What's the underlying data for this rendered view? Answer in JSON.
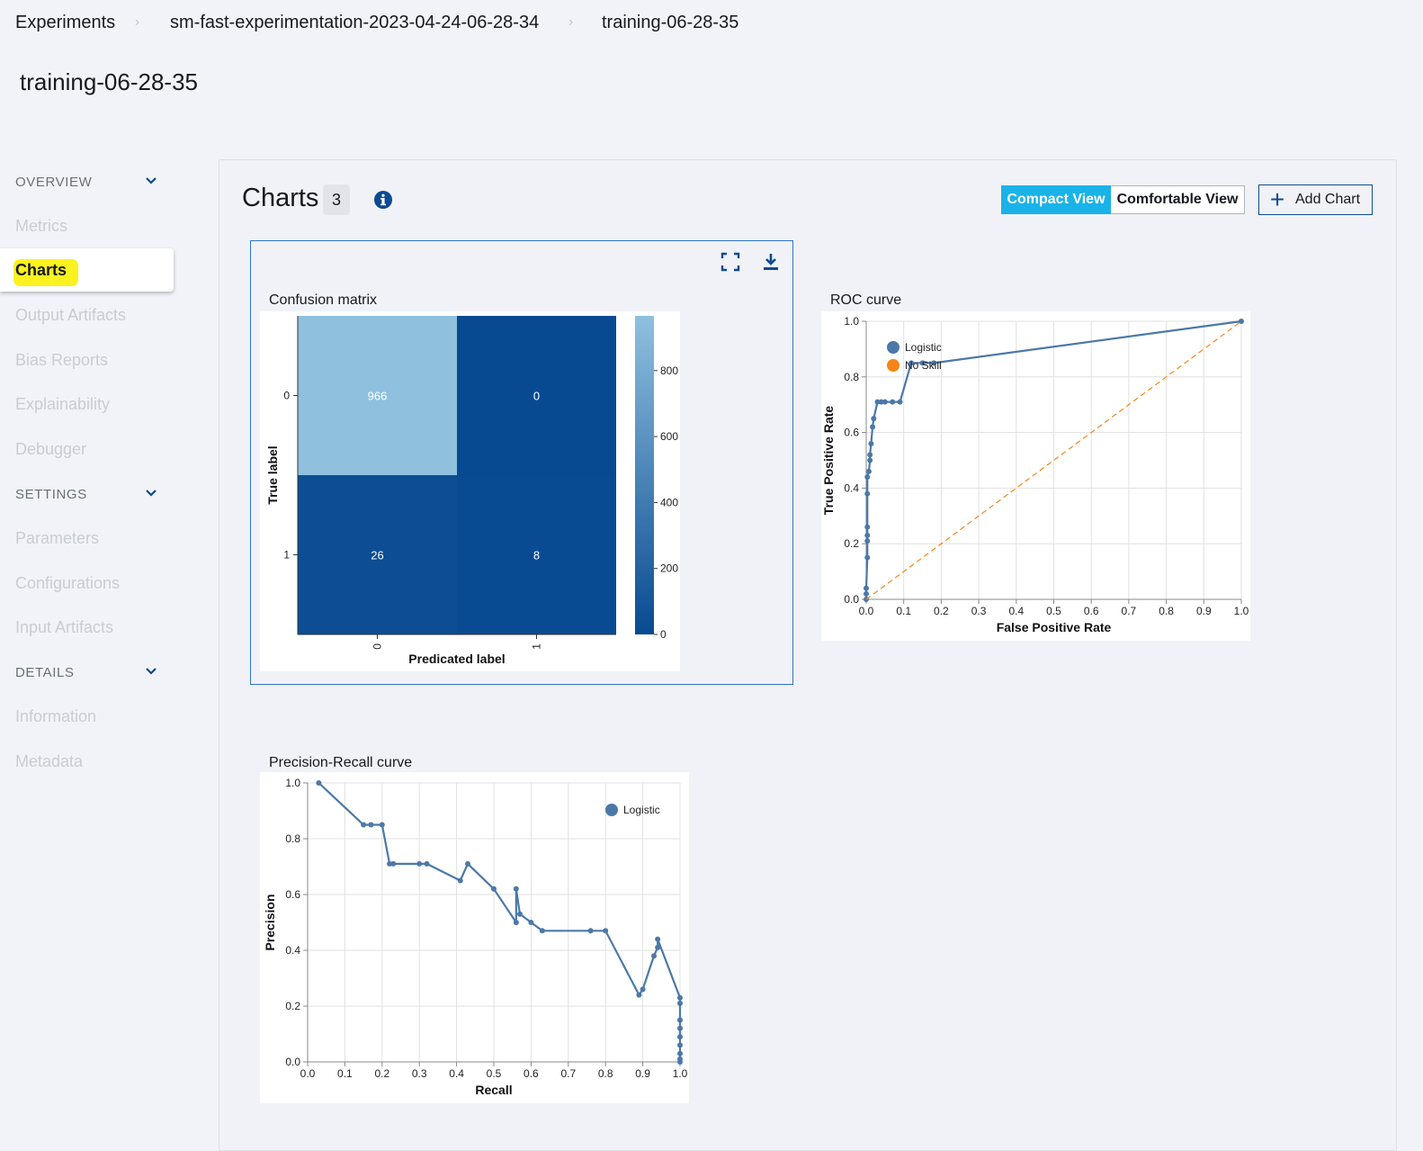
{
  "breadcrumb": [
    "Experiments",
    "sm-fast-experimentation-2023-04-24-06-28-34",
    "training-06-28-35"
  ],
  "page_title": "training-06-28-35",
  "sidebar": {
    "sections": [
      {
        "label": "OVERVIEW",
        "items": [
          "Metrics",
          "Charts",
          "Output Artifacts",
          "Bias Reports",
          "Explainability",
          "Debugger"
        ]
      },
      {
        "label": "SETTINGS",
        "items": [
          "Parameters",
          "Configurations",
          "Input Artifacts"
        ]
      },
      {
        "label": "DETAILS",
        "items": [
          "Information",
          "Metadata"
        ]
      }
    ],
    "active_item": "Charts"
  },
  "charts_header": {
    "title": "Charts",
    "count": "3",
    "view_compact": "Compact View",
    "view_comfortable": "Comfortable View",
    "selected_view": "Compact View",
    "add_chart": "Add Chart"
  },
  "colors": {
    "accent": "#19b3e8",
    "series_blue": "#4c78a8",
    "no_skill_orange": "#f58518",
    "highlight": "#fbf21f"
  },
  "icons": [
    "chevron-down-icon",
    "info-icon",
    "fullscreen-icon",
    "download-icon",
    "plus-icon"
  ],
  "chart_data": [
    {
      "type": "heatmap",
      "title": "Confusion matrix",
      "xlabel": "Predicated label",
      "ylabel": "True label",
      "x_categories": [
        "0",
        "1"
      ],
      "y_categories": [
        "0",
        "1"
      ],
      "values": [
        [
          966,
          0
        ],
        [
          26,
          8
        ]
      ],
      "colorbar_ticks": [
        0,
        200,
        400,
        600,
        800
      ],
      "colorbar_range": [
        0,
        966
      ]
    },
    {
      "type": "line",
      "title": "ROC curve",
      "xlabel": "False Positive Rate",
      "ylabel": "True Positive Rate",
      "xlim": [
        0,
        1
      ],
      "ylim": [
        0,
        1
      ],
      "x_ticks": [
        "0.0",
        "0.1",
        "0.2",
        "0.3",
        "0.4",
        "0.5",
        "0.6",
        "0.7",
        "0.8",
        "0.9",
        "1.0"
      ],
      "y_ticks": [
        "0.0",
        "0.2",
        "0.4",
        "0.6",
        "0.8",
        "1.0"
      ],
      "grid": true,
      "legend_position": "top-left",
      "series": [
        {
          "name": "Logistic",
          "x": [
            0,
            0,
            0,
            0.003,
            0.003,
            0.003,
            0.003,
            0.003,
            0.003,
            0.007,
            0.01,
            0.01,
            0.013,
            0.017,
            0.02,
            0.03,
            0.04,
            0.05,
            0.07,
            0.09,
            0.12,
            0.15,
            0.18,
            1.0
          ],
          "y": [
            0,
            0.02,
            0.04,
            0.15,
            0.21,
            0.23,
            0.26,
            0.38,
            0.44,
            0.46,
            0.5,
            0.52,
            0.56,
            0.62,
            0.65,
            0.71,
            0.71,
            0.71,
            0.71,
            0.71,
            0.85,
            0.85,
            0.85,
            1.0
          ]
        },
        {
          "name": "No Skill",
          "x": [
            0,
            1
          ],
          "y": [
            0,
            1
          ]
        }
      ]
    },
    {
      "type": "line",
      "title": "Precision-Recall curve",
      "xlabel": "Recall",
      "ylabel": "Precision",
      "xlim": [
        0,
        1
      ],
      "ylim": [
        0,
        1
      ],
      "x_ticks": [
        "0.0",
        "0.1",
        "0.2",
        "0.3",
        "0.4",
        "0.5",
        "0.6",
        "0.7",
        "0.8",
        "0.9",
        "1.0"
      ],
      "y_ticks": [
        "0.0",
        "0.2",
        "0.4",
        "0.6",
        "0.8",
        "1.0"
      ],
      "grid": true,
      "legend_position": "top-right",
      "series": [
        {
          "name": "Logistic",
          "x": [
            0.03,
            0.15,
            0.17,
            0.2,
            0.22,
            0.23,
            0.3,
            0.32,
            0.41,
            0.43,
            0.5,
            0.56,
            0.56,
            0.57,
            0.6,
            0.63,
            0.76,
            0.8,
            0.89,
            0.9,
            0.93,
            0.94,
            0.94,
            1.0,
            1.0,
            1.0,
            1.0,
            1.0,
            1.0,
            1.0,
            1.0,
            1.0
          ],
          "y": [
            1.0,
            0.85,
            0.85,
            0.85,
            0.71,
            0.71,
            0.71,
            0.71,
            0.65,
            0.71,
            0.62,
            0.5,
            0.62,
            0.53,
            0.5,
            0.47,
            0.47,
            0.47,
            0.24,
            0.26,
            0.38,
            0.41,
            0.44,
            0.23,
            0.21,
            0.15,
            0.12,
            0.09,
            0.06,
            0.03,
            0.01,
            0.0
          ]
        }
      ]
    }
  ]
}
